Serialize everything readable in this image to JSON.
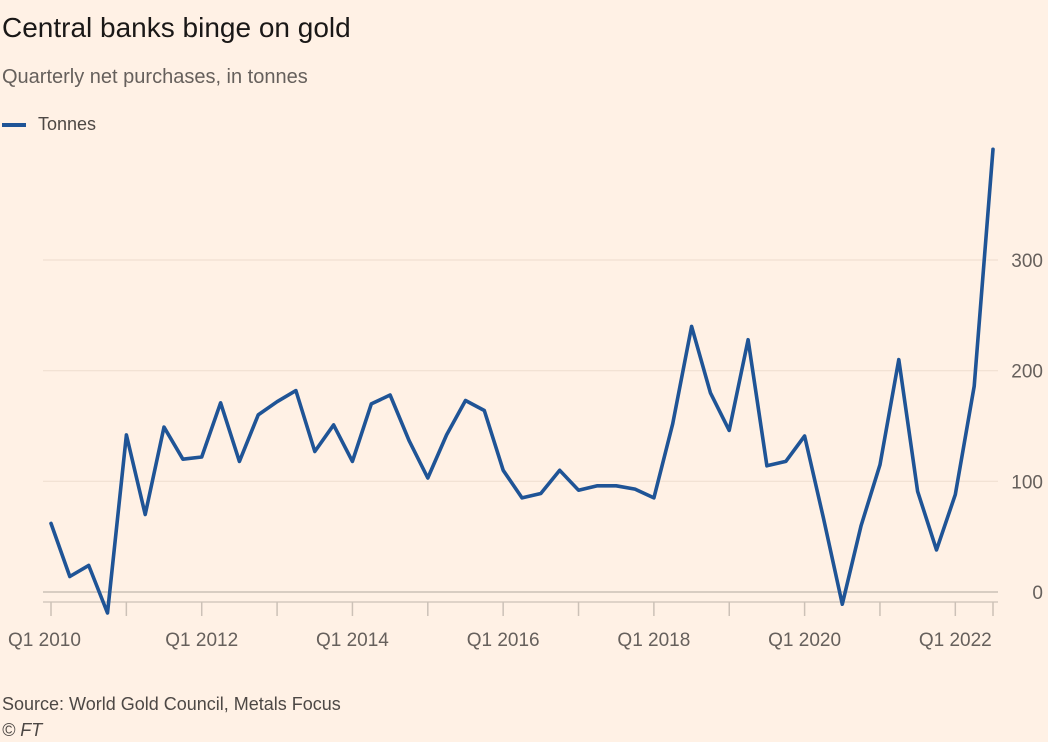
{
  "chart_data": {
    "type": "line",
    "title": "Central banks binge on gold",
    "subtitle": "Quarterly net purchases, in tonnes",
    "legend": [
      "Tonnes"
    ],
    "legend_placement": "top-left",
    "xlabel": "",
    "ylabel": "",
    "ylim": [
      -20,
      400
    ],
    "yticks": [
      0,
      100,
      200,
      300
    ],
    "xtick_labels": [
      "Q1 2010",
      "Q1 2012",
      "Q1 2014",
      "Q1 2016",
      "Q1 2018",
      "Q1 2020",
      "Q1 2022"
    ],
    "grid": "horizontal",
    "series": [
      {
        "name": "Tonnes",
        "color": "#1f5496",
        "x": [
          "Q1 2010",
          "Q2 2010",
          "Q3 2010",
          "Q4 2010",
          "Q1 2011",
          "Q2 2011",
          "Q3 2011",
          "Q4 2011",
          "Q1 2012",
          "Q2 2012",
          "Q3 2012",
          "Q4 2012",
          "Q1 2013",
          "Q2 2013",
          "Q3 2013",
          "Q4 2013",
          "Q1 2014",
          "Q2 2014",
          "Q3 2014",
          "Q4 2014",
          "Q1 2015",
          "Q2 2015",
          "Q3 2015",
          "Q4 2015",
          "Q1 2016",
          "Q2 2016",
          "Q3 2016",
          "Q4 2016",
          "Q1 2017",
          "Q2 2017",
          "Q3 2017",
          "Q4 2017",
          "Q1 2018",
          "Q2 2018",
          "Q3 2018",
          "Q4 2018",
          "Q1 2019",
          "Q2 2019",
          "Q3 2019",
          "Q4 2019",
          "Q1 2020",
          "Q2 2020",
          "Q3 2020",
          "Q4 2020",
          "Q1 2021",
          "Q2 2021",
          "Q3 2021",
          "Q4 2021",
          "Q1 2022",
          "Q2 2022",
          "Q3 2022"
        ],
        "values": [
          62,
          14,
          24,
          -19,
          142,
          70,
          149,
          120,
          122,
          171,
          118,
          160,
          172,
          182,
          127,
          151,
          118,
          170,
          178,
          137,
          103,
          142,
          173,
          164,
          110,
          85,
          89,
          110,
          92,
          96,
          96,
          93,
          85,
          152,
          240,
          180,
          146,
          228,
          114,
          118,
          141,
          67,
          -11,
          60,
          115,
          210,
          91,
          38,
          88,
          186,
          400
        ]
      }
    ]
  },
  "footer": {
    "source": "Source: World Gold Council, Metals Focus",
    "copyright": "© FT"
  }
}
